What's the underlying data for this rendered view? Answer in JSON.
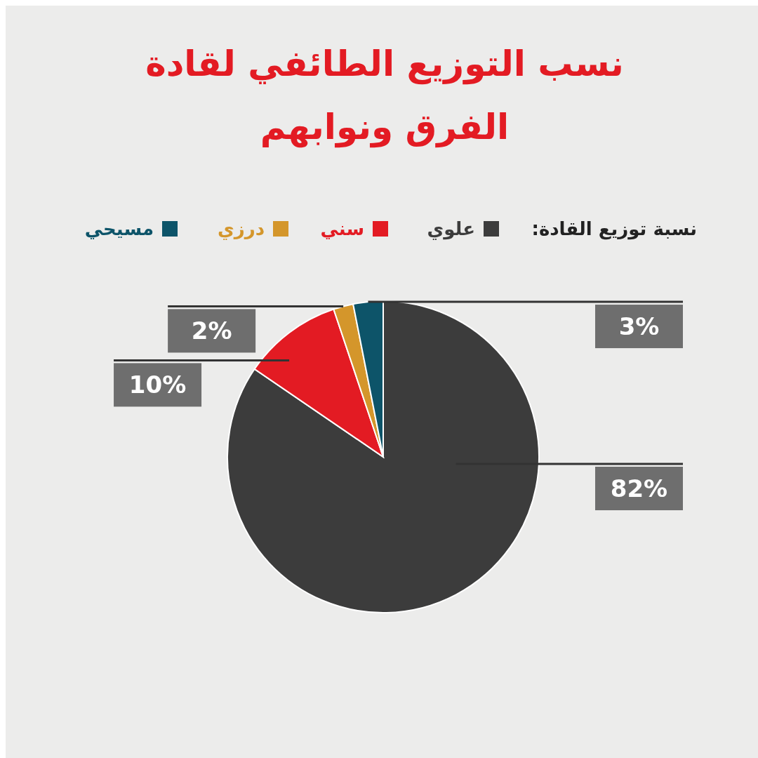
{
  "chart_data": {
    "type": "pie",
    "title": "نسب التوزيع الطائفي لقادة الفرق ونوابهم",
    "legend_title": "نسبة توزيع القادة:",
    "legend": "top",
    "categories": [
      "علوي",
      "سني",
      "درزي",
      "مسيحي"
    ],
    "values": [
      82,
      10,
      2,
      3
    ],
    "value_labels": [
      "82%",
      "10%",
      "2%",
      "3%"
    ],
    "colors": [
      "#3c3c3c",
      "#e31b23",
      "#d4962b",
      "#0d5469"
    ]
  }
}
